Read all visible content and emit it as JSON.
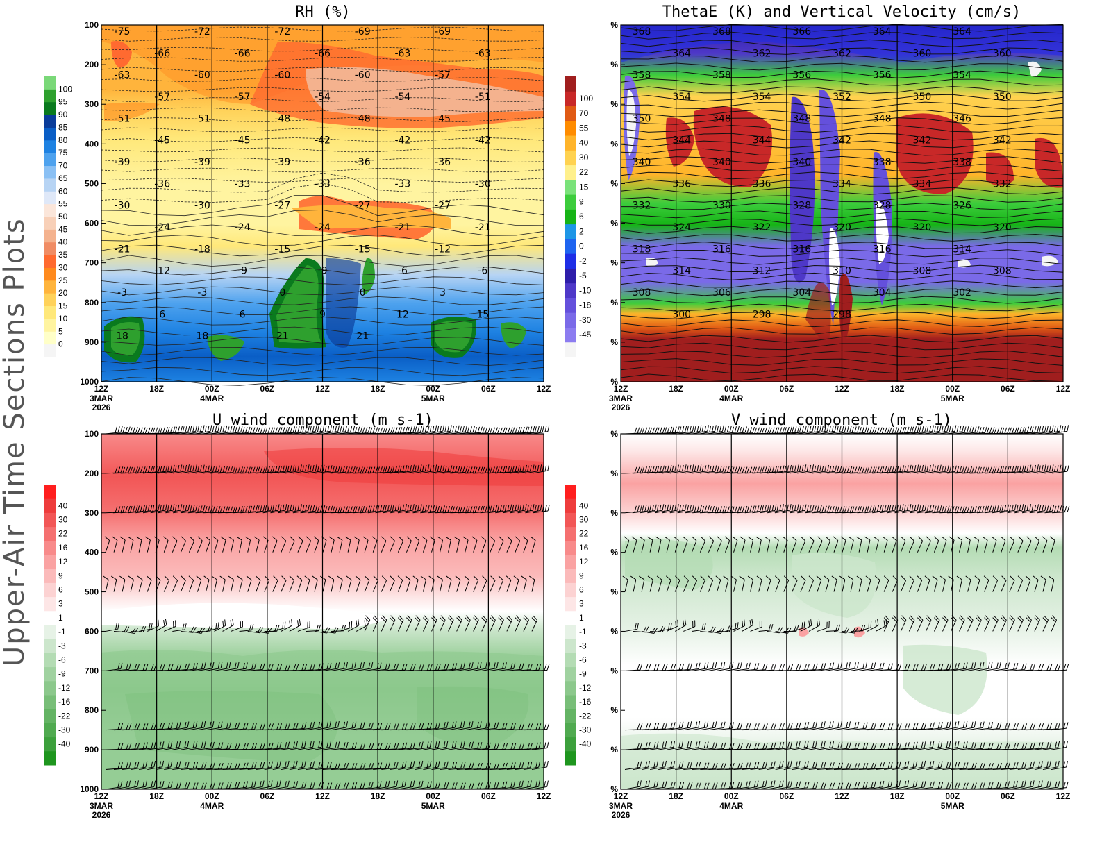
{
  "figure_label": "Upper-Air Time Sections Plots",
  "time_ticks": [
    "12Z",
    "18Z",
    "00Z",
    "06Z",
    "12Z",
    "18Z",
    "00Z",
    "06Z",
    "12Z"
  ],
  "date_labels": [
    {
      "tick_index": 0,
      "lines": [
        "3MAR",
        "2026"
      ]
    },
    {
      "tick_index": 2,
      "lines": [
        "4MAR"
      ]
    },
    {
      "tick_index": 6,
      "lines": [
        "5MAR"
      ]
    }
  ],
  "chart_data": [
    {
      "id": "rh",
      "type": "heatmap",
      "title": "RH (%)",
      "x": [
        "12Z 3MAR",
        "18Z",
        "00Z 4MAR",
        "06Z",
        "12Z",
        "18Z",
        "00Z 5MAR",
        "06Z",
        "12Z"
      ],
      "y_ticks": [
        "100",
        "200",
        "300",
        "400",
        "500",
        "600",
        "700",
        "800",
        "900",
        "1000"
      ],
      "ylim": [
        1000,
        100
      ],
      "colorbar": {
        "levels": [
          "0",
          "5",
          "10",
          "15",
          "20",
          "25",
          "30",
          "35",
          "40",
          "45",
          "50",
          "55",
          "60",
          "65",
          "70",
          "75",
          "80",
          "85",
          "90",
          "95",
          "100"
        ],
        "colors": [
          "#f5f5f5",
          "#ffffc8",
          "#fff4a0",
          "#ffe87a",
          "#ffd25a",
          "#ffb43c",
          "#ff8a1e",
          "#ff6a30",
          "#f08c64",
          "#f4b28e",
          "#f8d0b8",
          "#fbe6da",
          "#dfe8f8",
          "#b7d4f4",
          "#8ac0f4",
          "#4ea2ee",
          "#1e82e2",
          "#0a5ec6",
          "#0a3c9a",
          "#0a7a1e",
          "#2ea02e",
          "#7ad878"
        ]
      },
      "contours": {
        "variable": "Temperature",
        "labels": [
          "-75",
          "-72",
          "-72",
          "-69",
          "-69",
          "-66",
          "-66",
          "-66",
          "-63",
          "-63",
          "-63",
          "-60",
          "-60",
          "-60",
          "-57",
          "-57",
          "-57",
          "-54",
          "-54",
          "-51",
          "-51",
          "-51",
          "-48",
          "-48",
          "-45",
          "-45",
          "-45",
          "-42",
          "-42",
          "-42",
          "-39",
          "-39",
          "-39",
          "-36",
          "-36",
          "-36",
          "-33",
          "-33",
          "-33",
          "-30",
          "-30",
          "-30",
          "-27",
          "-27",
          "-27",
          "-24",
          "-24",
          "-24",
          "-21",
          "-21",
          "-21",
          "-18",
          "-15",
          "-15",
          "-12",
          "-12",
          "-9",
          "-9",
          "-6",
          "-6",
          "-3",
          "-3",
          "0",
          "0",
          "3",
          "6",
          "6",
          "9",
          "12",
          "15",
          "18",
          "18",
          "21",
          "21"
        ]
      }
    },
    {
      "id": "thetae",
      "type": "heatmap",
      "title": "ThetaE (K) and Vertical Velocity (cm/s)",
      "x": [
        "12Z 3MAR",
        "18Z",
        "00Z 4MAR",
        "06Z",
        "12Z",
        "18Z",
        "00Z 5MAR",
        "06Z",
        "12Z"
      ],
      "y_ticks": [
        "%",
        "%",
        "%",
        "%",
        "%",
        "%",
        "%",
        "%",
        "%",
        "%"
      ],
      "colorbar": {
        "levels": [
          "-45",
          "-30",
          "-18",
          "-10",
          "-5",
          "-2",
          "0",
          "2",
          "6",
          "9",
          "15",
          "22",
          "30",
          "40",
          "55",
          "70",
          "100"
        ],
        "colors": [
          "#f5f5f5",
          "#8c7cf0",
          "#7a6ae8",
          "#6450dc",
          "#4e38c8",
          "#2e1eaa",
          "#1e2ee6",
          "#1e64f0",
          "#1e96e6",
          "#16b416",
          "#3ccc3c",
          "#7ae27a",
          "#fff08c",
          "#ffd250",
          "#ffb42a",
          "#ff8c00",
          "#e05a14",
          "#c82828",
          "#a01e1e"
        ]
      },
      "contours": {
        "variable": "ThetaE (K)",
        "labels": [
          "368",
          "368",
          "366",
          "364",
          "364",
          "364",
          "362",
          "362",
          "360",
          "360",
          "358",
          "358",
          "356",
          "356",
          "354",
          "354",
          "354",
          "352",
          "350",
          "350",
          "350",
          "348",
          "348",
          "348",
          "346",
          "344",
          "344",
          "342",
          "342",
          "342",
          "340",
          "340",
          "340",
          "338",
          "338",
          "336",
          "336",
          "334",
          "334",
          "332",
          "332",
          "330",
          "328",
          "328",
          "326",
          "324",
          "322",
          "320",
          "320",
          "320",
          "318",
          "316",
          "316",
          "316",
          "314",
          "314",
          "312",
          "310",
          "308",
          "308",
          "308",
          "306",
          "304",
          "304",
          "302",
          "300",
          "298",
          "298"
        ]
      }
    },
    {
      "id": "uwind",
      "type": "heatmap",
      "title": "U wind component (m s-1)",
      "x": [
        "12Z 3MAR",
        "18Z",
        "00Z 4MAR",
        "06Z",
        "12Z",
        "18Z",
        "00Z 5MAR",
        "06Z",
        "12Z"
      ],
      "y_ticks": [
        "100",
        "200",
        "300",
        "400",
        "500",
        "600",
        "700",
        "800",
        "900",
        "1000"
      ],
      "ylim": [
        1000,
        100
      ],
      "colorbar": {
        "levels": [
          "-40",
          "-30",
          "-22",
          "-16",
          "-12",
          "-9",
          "-6",
          "-3",
          "-1",
          "1",
          "3",
          "6",
          "9",
          "12",
          "16",
          "22",
          "30",
          "40"
        ],
        "colors": [
          "#1e961e",
          "#3ca03c",
          "#50aa50",
          "#64b464",
          "#78be78",
          "#8cc88c",
          "#a0d2a0",
          "#b4dcb4",
          "#cce6cc",
          "#e6f2e6",
          "#ffffff",
          "#fde6e6",
          "#fcd2d2",
          "#fbbaba",
          "#faa2a2",
          "#f88a8a",
          "#f57070",
          "#f25656",
          "#ee3c3c",
          "#ff1e1e"
        ]
      },
      "barb_levels": [
        100,
        200,
        300,
        400,
        500,
        600,
        700,
        850,
        900,
        950,
        1000
      ]
    },
    {
      "id": "vwind",
      "type": "heatmap",
      "title": "V wind component (m s-1)",
      "x": [
        "12Z 3MAR",
        "18Z",
        "00Z 4MAR",
        "06Z",
        "12Z",
        "18Z",
        "00Z 5MAR",
        "06Z",
        "12Z"
      ],
      "y_ticks": [
        "%",
        "%",
        "%",
        "%",
        "%",
        "%",
        "%",
        "%",
        "%",
        "%"
      ],
      "colorbar": {
        "levels": [
          "-40",
          "-30",
          "-22",
          "-16",
          "-12",
          "-9",
          "-6",
          "-3",
          "-1",
          "1",
          "3",
          "6",
          "9",
          "12",
          "16",
          "22",
          "30",
          "40"
        ],
        "colors": [
          "#1e961e",
          "#3ca03c",
          "#50aa50",
          "#64b464",
          "#78be78",
          "#8cc88c",
          "#a0d2a0",
          "#b4dcb4",
          "#cce6cc",
          "#e6f2e6",
          "#ffffff",
          "#fde6e6",
          "#fcd2d2",
          "#fbbaba",
          "#faa2a2",
          "#f88a8a",
          "#f57070",
          "#f25656",
          "#ee3c3c",
          "#ff1e1e"
        ]
      },
      "barb_levels": [
        100,
        200,
        300,
        400,
        500,
        600,
        700,
        850,
        900,
        950,
        1000
      ]
    }
  ]
}
